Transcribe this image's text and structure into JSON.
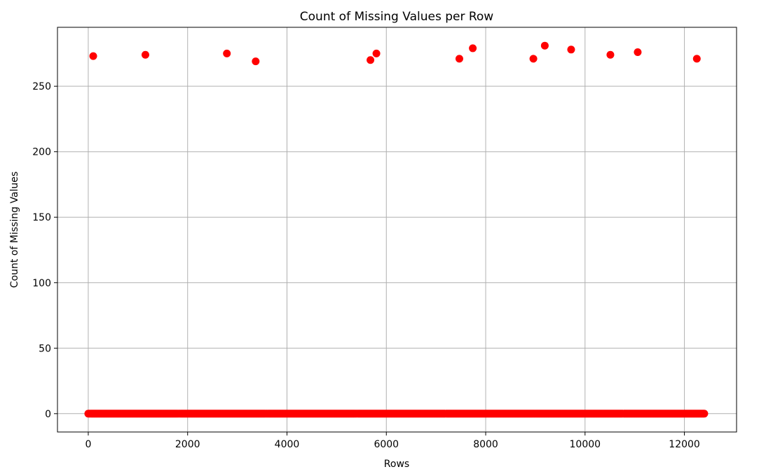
{
  "chart_data": {
    "type": "scatter",
    "title": "Count of Missing Values per Row",
    "xlabel": "Rows",
    "ylabel": "Count of Missing Values",
    "xlim": [
      -620,
      13050
    ],
    "ylim": [
      -14,
      295
    ],
    "xticks": [
      0,
      2000,
      4000,
      6000,
      8000,
      10000,
      12000
    ],
    "yticks": [
      0,
      50,
      100,
      150,
      200,
      250
    ],
    "grid": true,
    "color": "#ff0000",
    "baseline": {
      "x_start": 0,
      "x_end": 12400,
      "step": 20,
      "y": 0
    },
    "points": [
      {
        "x": 100,
        "y": 273
      },
      {
        "x": 1150,
        "y": 274
      },
      {
        "x": 2790,
        "y": 275
      },
      {
        "x": 3370,
        "y": 269
      },
      {
        "x": 5680,
        "y": 270
      },
      {
        "x": 5800,
        "y": 275
      },
      {
        "x": 7470,
        "y": 271
      },
      {
        "x": 7740,
        "y": 279
      },
      {
        "x": 8960,
        "y": 271
      },
      {
        "x": 9190,
        "y": 281
      },
      {
        "x": 9720,
        "y": 278
      },
      {
        "x": 10510,
        "y": 274
      },
      {
        "x": 11060,
        "y": 276
      },
      {
        "x": 12250,
        "y": 271
      }
    ]
  }
}
